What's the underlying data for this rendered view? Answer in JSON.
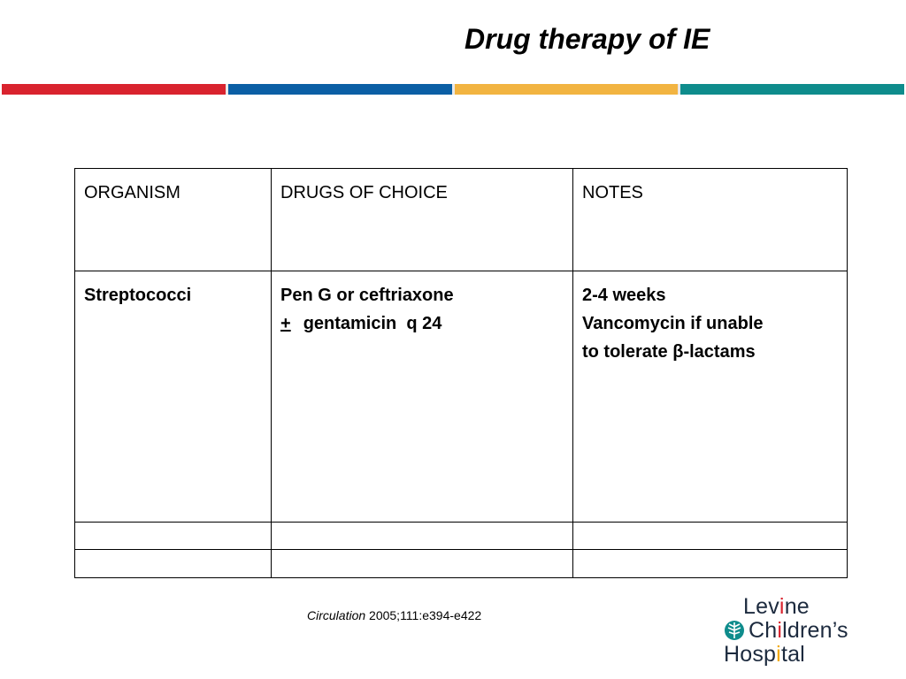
{
  "title": "Drug therapy of IE",
  "stripes": [
    "#d9232e",
    "#0b5fa5",
    "#f2b441",
    "#0e8c8c"
  ],
  "table": {
    "headers": [
      "ORGANISM",
      "DRUGS OF CHOICE",
      "NOTES"
    ],
    "rows": [
      {
        "organism": "Streptococci",
        "drugs_line1": "Pen G or ceftriaxone",
        "drugs_pm": "+",
        "drugs_line2": "gentamicin  q 24",
        "notes_line1": "2-4 weeks",
        "notes_line2": "Vancomycin if unable",
        "notes_line3": "to tolerate β-lactams"
      },
      {
        "organism": "",
        "drugs": "",
        "notes": ""
      },
      {
        "organism": "",
        "drugs": "",
        "notes": ""
      }
    ]
  },
  "citation": {
    "journal": "Circulation",
    "ref": " 2005;111:e394-e422"
  },
  "logo": {
    "line1_a": "Lev",
    "line1_i": "i",
    "line1_b": "ne",
    "line2_a": "Ch",
    "line2_i": "i",
    "line2_b": "ldren’s",
    "line3_a": "Hosp",
    "line3_i": "i",
    "line3_b": "tal",
    "icon": "tree-icon"
  }
}
